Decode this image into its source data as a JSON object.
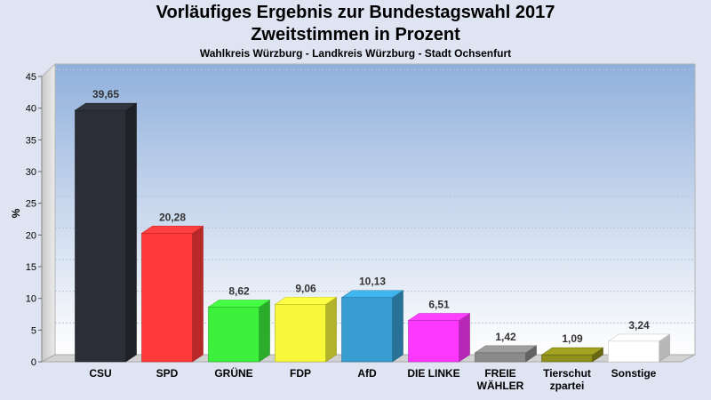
{
  "header": {
    "title": "Vorläufiges Ergebnis zur Bundestagswahl 2017",
    "subtitle": "Zweitstimmen in Prozent",
    "district": "Wahlkreis Würzburg - Landkreis Würzburg - Stadt Ochsenfurt"
  },
  "chart_data": {
    "type": "bar",
    "title": "Vorläufiges Ergebnis zur Bundestagswahl 2017",
    "subtitle": "Zweitstimmen in Prozent",
    "ylabel": "%",
    "xlabel": "",
    "ylim": [
      0,
      45
    ],
    "yticks": [
      0,
      5,
      10,
      15,
      20,
      25,
      30,
      35,
      40,
      45
    ],
    "grid": true,
    "categories": [
      "CSU",
      "SPD",
      "GRÜNE",
      "FDP",
      "AfD",
      "DIE LINKE",
      "FREIE WÄHLER",
      "Tierschutzpartei",
      "Sonstige"
    ],
    "category_lines": [
      [
        "CSU"
      ],
      [
        "SPD"
      ],
      [
        "GRÜNE"
      ],
      [
        "FDP"
      ],
      [
        "AfD"
      ],
      [
        "DIE LINKE"
      ],
      [
        "FREIE",
        "WÄHLER"
      ],
      [
        "Tierschut",
        "zpartei"
      ],
      [
        "Sonstige"
      ]
    ],
    "values": [
      39.65,
      20.28,
      8.62,
      9.06,
      10.13,
      6.51,
      1.42,
      1.09,
      3.24
    ],
    "value_labels": [
      "39,65",
      "20,28",
      "8,62",
      "9,06",
      "10,13",
      "6,51",
      "1,42",
      "1,09",
      "3,24"
    ],
    "colors": [
      "#2b2e36",
      "#ff3838",
      "#3cf03c",
      "#f8f83a",
      "#389ed2",
      "#ff38ff",
      "#8a8a8a",
      "#8f8f1c",
      "#ffffff"
    ]
  }
}
